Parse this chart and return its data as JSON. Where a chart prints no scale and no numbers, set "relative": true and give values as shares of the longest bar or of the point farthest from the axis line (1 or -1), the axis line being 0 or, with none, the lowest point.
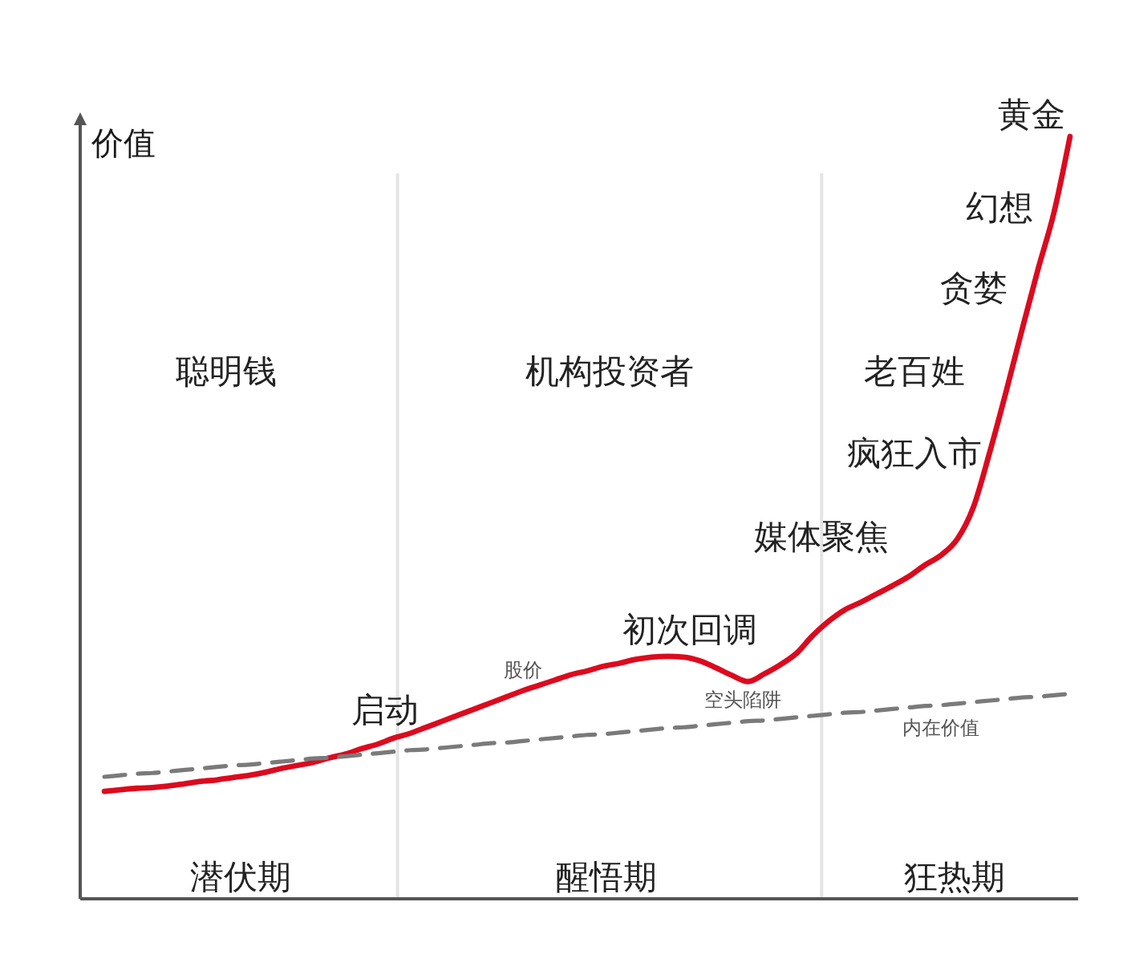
{
  "chart_data": {
    "type": "line",
    "ylabel": "价值",
    "relative": true,
    "categories": [
      null,
      null,
      null,
      null,
      null,
      null,
      null,
      null,
      null,
      null,
      null,
      null,
      null,
      null,
      null,
      null,
      null,
      null,
      null,
      null,
      null,
      null,
      null,
      null,
      null,
      null,
      null,
      null,
      null,
      null,
      null,
      null,
      null,
      null,
      null,
      null,
      null,
      null,
      null,
      null,
      null,
      null,
      null,
      null,
      null,
      null,
      null,
      null,
      null,
      null,
      null,
      null,
      null,
      null,
      null,
      null,
      null,
      null,
      null,
      null,
      null
    ],
    "series": [
      {
        "name": "股价",
        "color": "#dc0a1e",
        "line_style": "solid",
        "values": [
          0.141,
          0.143,
          0.145,
          0.146,
          0.148,
          0.151,
          0.154,
          0.156,
          0.159,
          0.162,
          0.166,
          0.171,
          0.175,
          0.179,
          0.185,
          0.19,
          0.197,
          0.203,
          0.211,
          0.217,
          0.225,
          0.233,
          0.241,
          0.249,
          0.257,
          0.265,
          0.273,
          0.28,
          0.287,
          0.294,
          0.299,
          0.305,
          0.309,
          0.314,
          0.317,
          0.318,
          0.317,
          0.312,
          0.303,
          0.293,
          0.285,
          0.295,
          0.307,
          0.322,
          0.345,
          0.364,
          0.379,
          0.389,
          0.4,
          0.411,
          0.423,
          0.438,
          0.451,
          0.472,
          0.514,
          0.585,
          0.663,
          0.745,
          0.825,
          0.9,
          1.0
        ]
      },
      {
        "name": "内在价值",
        "color": "#7a7a7a",
        "line_style": "dashed",
        "values": [
          0.16,
          0.162,
          0.164,
          0.165,
          0.167,
          0.169,
          0.171,
          0.173,
          0.175,
          0.176,
          0.178,
          0.18,
          0.182,
          0.184,
          0.185,
          0.187,
          0.189,
          0.191,
          0.193,
          0.195,
          0.196,
          0.198,
          0.2,
          0.202,
          0.204,
          0.205,
          0.207,
          0.209,
          0.211,
          0.213,
          0.215,
          0.216,
          0.218,
          0.22,
          0.222,
          0.224,
          0.225,
          0.227,
          0.229,
          0.231,
          0.233,
          0.234,
          0.236,
          0.238,
          0.24,
          0.242,
          0.244,
          0.245,
          0.247,
          0.249,
          0.251,
          0.253,
          0.254,
          0.256,
          0.258,
          0.26,
          0.262,
          0.264,
          0.265,
          0.267,
          0.269
        ]
      }
    ],
    "annotations": [
      "聪明钱",
      "机构投资者",
      "老百姓",
      "潜伏期",
      "醒悟期",
      "狂热期",
      "启动",
      "初次回调",
      "空头陷阱",
      "媒体聚焦",
      "疯狂入市",
      "贪婪",
      "幻想",
      "黄金"
    ]
  }
}
